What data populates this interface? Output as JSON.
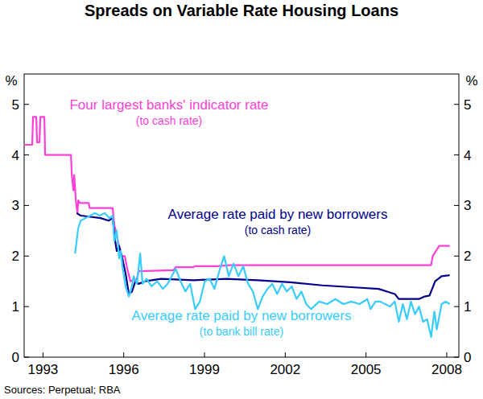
{
  "chart_data": {
    "type": "line",
    "title": "Spreads on Variable Rate Housing Loans",
    "ylabel": "%",
    "source": "Sources: Perpetual; RBA",
    "xlim": [
      1992.3,
      2008.45
    ],
    "xticks": [
      1993,
      1996,
      1999,
      2002,
      2005,
      2008
    ],
    "ylim": [
      0,
      5.6
    ],
    "yticks": [
      0,
      1,
      2,
      3,
      4,
      5
    ],
    "grid": false,
    "series": [
      {
        "name": "Four largest banks' indicator rate (to cash rate)",
        "color": "#ff40d8",
        "x": [
          1992.3,
          1992.6,
          1992.63,
          1992.75,
          1992.78,
          1992.87,
          1992.9,
          1993.05,
          1993.08,
          1994.04,
          1994.07,
          1994.13,
          1994.16,
          1994.22,
          1994.28,
          1994.31,
          1994.37,
          1994.7,
          1994.73,
          1995.59,
          1995.65,
          1995.71,
          1995.8,
          1995.89,
          1996.04,
          1996.13,
          1996.25,
          1996.49,
          1996.55,
          1997.84,
          1997.93,
          1998.59,
          1998.65,
          1999.49,
          1999.93,
          2007.42,
          2007.48,
          2007.72,
          2008.11
        ],
        "values": [
          4.2,
          4.2,
          4.75,
          4.75,
          4.25,
          4.25,
          4.75,
          4.75,
          4.0,
          4.0,
          3.6,
          3.3,
          3.6,
          3.1,
          2.85,
          3.1,
          3.05,
          3.05,
          2.95,
          2.95,
          2.6,
          2.5,
          2.25,
          2.0,
          2.0,
          1.75,
          1.5,
          1.55,
          1.7,
          1.72,
          1.78,
          1.78,
          1.8,
          1.8,
          1.82,
          1.82,
          2.0,
          2.2,
          2.2
        ]
      },
      {
        "name": "Average rate paid by new borrowers (to cash rate)",
        "color": "#00008c",
        "x": [
          1994.25,
          1994.4,
          1994.7,
          1995.14,
          1995.44,
          1995.59,
          1995.68,
          1995.74,
          1995.83,
          1995.95,
          1996.07,
          1996.19,
          1996.31,
          1996.43,
          1996.55,
          1996.79,
          1997.39,
          1998.59,
          1999.79,
          2000.98,
          2002.18,
          2003.38,
          2004.58,
          2005.47,
          2006.07,
          2006.22,
          2006.97,
          2007.18,
          2007.36,
          2007.57,
          2007.81,
          2008.11
        ],
        "values": [
          2.85,
          2.8,
          2.78,
          2.75,
          2.7,
          2.75,
          2.3,
          2.1,
          2.2,
          1.95,
          1.65,
          1.25,
          1.3,
          1.5,
          1.45,
          1.5,
          1.55,
          1.52,
          1.55,
          1.52,
          1.48,
          1.42,
          1.38,
          1.35,
          1.25,
          1.15,
          1.15,
          1.2,
          1.22,
          1.5,
          1.6,
          1.62
        ]
      },
      {
        "name": "Average rate paid by new borrowers (to bank bill rate)",
        "color": "#38ccff",
        "x": [
          1994.19,
          1994.31,
          1994.4,
          1994.58,
          1994.76,
          1994.93,
          1995.11,
          1995.29,
          1995.47,
          1995.59,
          1995.65,
          1995.74,
          1995.83,
          1995.89,
          1995.95,
          1996.07,
          1996.19,
          1996.28,
          1996.37,
          1996.49,
          1996.61,
          1996.7,
          1996.85,
          1997.03,
          1997.24,
          1997.45,
          1997.63,
          1997.78,
          1997.93,
          1998.11,
          1998.29,
          1998.47,
          1998.65,
          1998.83,
          1999.01,
          1999.19,
          1999.37,
          1999.55,
          1999.73,
          1999.9,
          2000.08,
          2000.26,
          2000.44,
          2000.62,
          2000.8,
          2000.98,
          2001.16,
          2001.34,
          2001.52,
          2001.7,
          2001.88,
          2002.06,
          2002.24,
          2002.42,
          2002.6,
          2002.78,
          2002.96,
          2003.26,
          2003.56,
          2003.86,
          2004.16,
          2004.46,
          2004.76,
          2005.05,
          2005.17,
          2005.35,
          2005.53,
          2005.71,
          2005.89,
          2006.07,
          2006.22,
          2006.37,
          2006.52,
          2006.67,
          2006.82,
          2006.97,
          2007.12,
          2007.27,
          2007.42,
          2007.54,
          2007.63,
          2007.81,
          2007.96,
          2008.11
        ],
        "values": [
          2.05,
          2.55,
          2.7,
          2.75,
          2.8,
          2.85,
          2.8,
          2.85,
          2.75,
          2.8,
          2.3,
          2.5,
          1.95,
          2.1,
          1.8,
          1.4,
          1.2,
          1.35,
          1.6,
          1.45,
          2.05,
          1.45,
          1.55,
          1.4,
          1.5,
          1.35,
          1.45,
          1.6,
          1.75,
          1.5,
          1.3,
          1.45,
          0.95,
          1.1,
          1.5,
          1.55,
          1.35,
          1.7,
          2.0,
          1.6,
          1.85,
          1.6,
          1.8,
          1.45,
          1.3,
          0.95,
          1.2,
          1.35,
          1.45,
          1.25,
          1.45,
          1.3,
          1.4,
          1.15,
          1.3,
          1.05,
          0.95,
          1.1,
          1.05,
          1.15,
          1.05,
          1.1,
          1.05,
          1.15,
          0.95,
          1.1,
          1.1,
          1.05,
          1.0,
          1.1,
          0.7,
          1.05,
          0.75,
          1.1,
          0.85,
          1.0,
          0.7,
          0.75,
          0.4,
          0.9,
          0.55,
          1.05,
          1.1,
          1.05
        ]
      }
    ]
  }
}
